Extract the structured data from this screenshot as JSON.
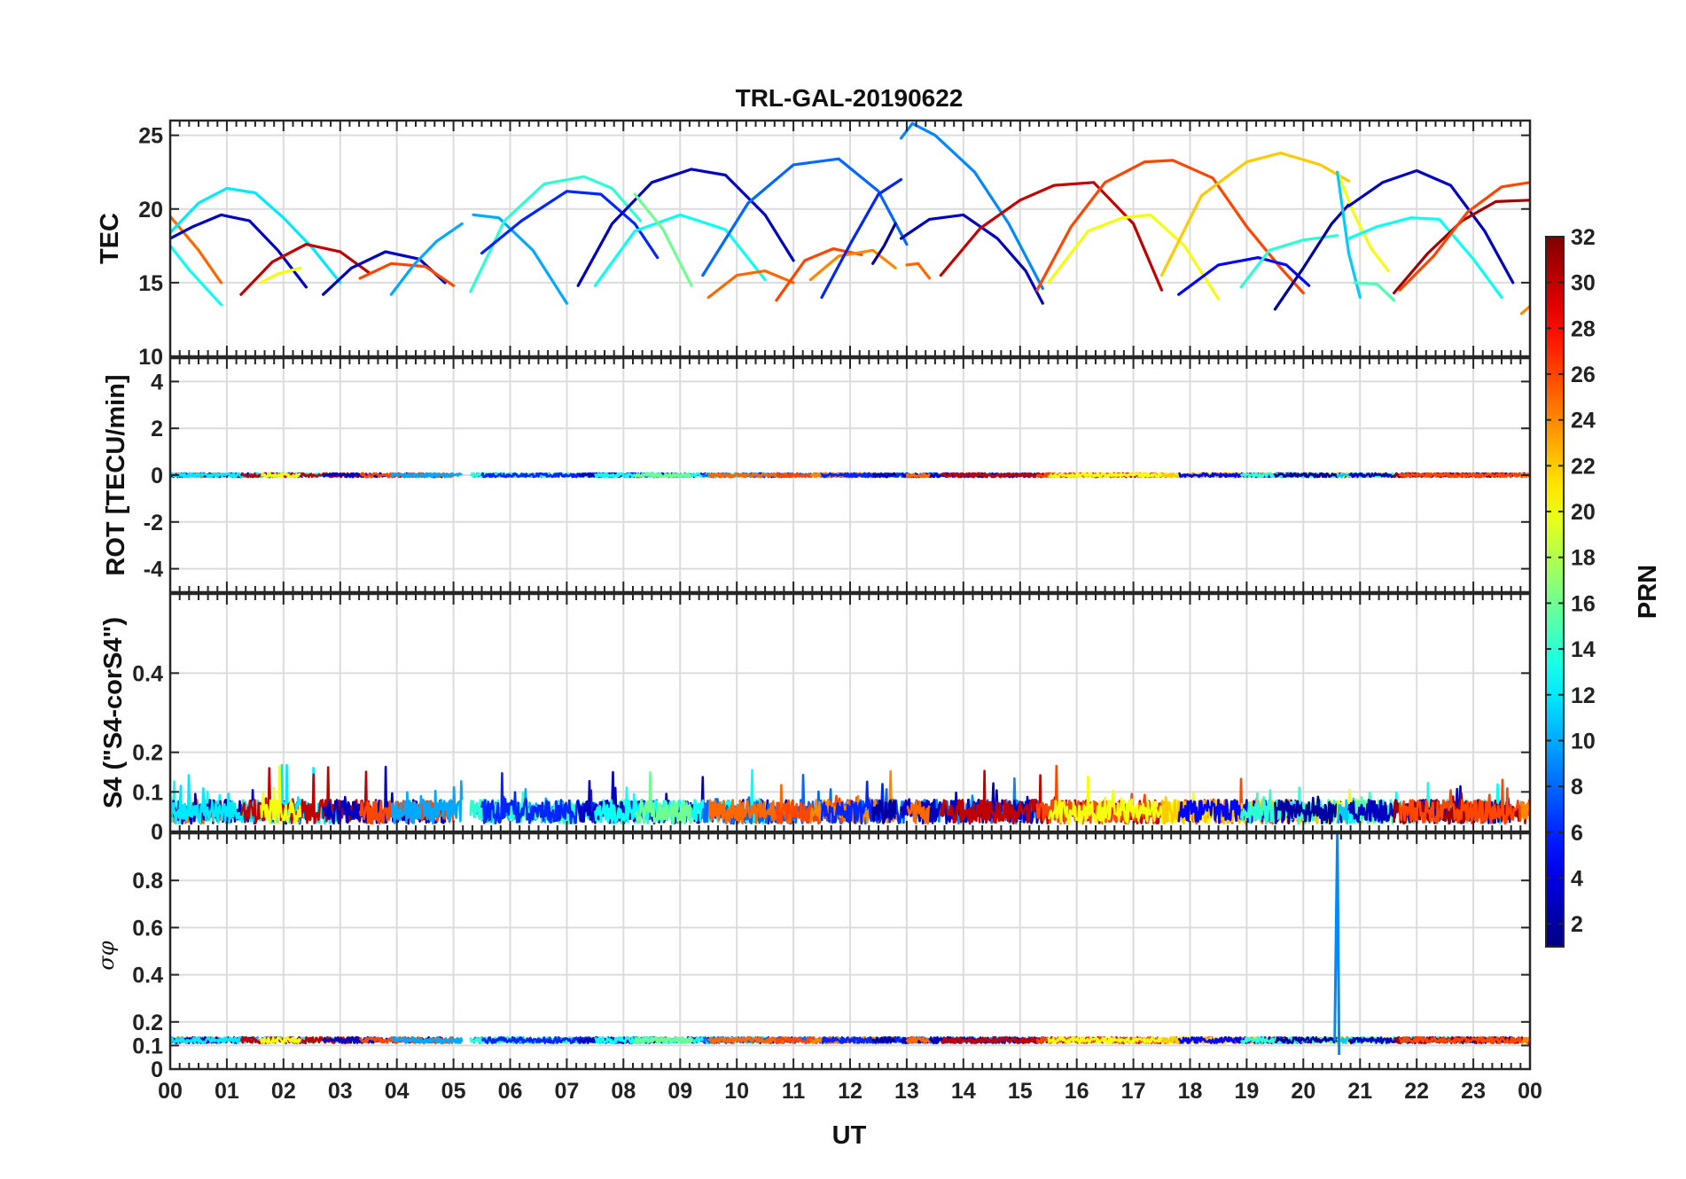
{
  "chart_data": {
    "type": "line",
    "title": "TRL-GAL-20190622",
    "xlabel": "UT",
    "x_range": [
      0,
      24
    ],
    "x_ticks": [
      "00",
      "01",
      "02",
      "03",
      "04",
      "05",
      "06",
      "07",
      "08",
      "09",
      "10",
      "11",
      "12",
      "13",
      "14",
      "15",
      "16",
      "17",
      "18",
      "19",
      "20",
      "21",
      "22",
      "23",
      "00"
    ],
    "colorbar": {
      "label": "PRN",
      "range": [
        1,
        32
      ],
      "colormap": "jet",
      "ticks": [
        "2",
        "4",
        "6",
        "8",
        "10",
        "12",
        "14",
        "16",
        "18",
        "20",
        "22",
        "24",
        "26",
        "28",
        "30",
        "32"
      ]
    },
    "panels": [
      {
        "name": "TEC",
        "ylabel": "TEC",
        "ylim": [
          10,
          26
        ],
        "yticks": [
          10,
          15,
          20,
          25
        ],
        "ytick_labels": [
          "10",
          "15",
          "20",
          "25"
        ],
        "series": [
          {
            "prn": 13,
            "x": [
              0,
              0.35,
              0.9
            ],
            "y": [
              17.5,
              15.8,
              13.5
            ]
          },
          {
            "prn": 25,
            "x": [
              0,
              0.5,
              0.9
            ],
            "y": [
              19.5,
              17.2,
              15.0
            ]
          },
          {
            "prn": 3,
            "x": [
              0,
              0.4,
              0.9,
              1.4,
              1.9,
              2.4
            ],
            "y": [
              18.0,
              18.8,
              19.6,
              19.2,
              17.2,
              14.7
            ]
          },
          {
            "prn": 12,
            "x": [
              0,
              0.5,
              1.0,
              1.5,
              2.0,
              2.5,
              3.0
            ],
            "y": [
              18.4,
              20.4,
              21.4,
              21.1,
              19.4,
              17.4,
              15.0
            ]
          },
          {
            "prn": 30,
            "x": [
              1.25,
              1.8,
              2.4,
              3.0,
              3.5
            ],
            "y": [
              14.2,
              16.4,
              17.6,
              17.1,
              15.7
            ]
          },
          {
            "prn": 20,
            "x": [
              1.6,
              1.9,
              2.3
            ],
            "y": [
              15.0,
              15.6,
              16.0
            ]
          },
          {
            "prn": 3,
            "x": [
              2.7,
              3.2,
              3.8,
              4.4,
              4.85
            ],
            "y": [
              14.2,
              16.0,
              17.1,
              16.6,
              15.0
            ]
          },
          {
            "prn": 26,
            "x": [
              3.35,
              3.9,
              4.5,
              5.0
            ],
            "y": [
              15.3,
              16.3,
              16.1,
              14.8
            ]
          },
          {
            "prn": 10,
            "x": [
              3.9,
              4.3,
              4.7,
              5.15
            ],
            "y": [
              14.2,
              16.2,
              17.8,
              19.0
            ]
          },
          {
            "prn": 10,
            "x": [
              5.35,
              5.8,
              6.4,
              7.0
            ],
            "y": [
              19.6,
              19.4,
              17.2,
              13.6
            ]
          },
          {
            "prn": 14,
            "x": [
              5.3,
              5.9,
              6.6,
              7.3,
              7.8,
              8.3
            ],
            "y": [
              14.4,
              19.2,
              21.7,
              22.2,
              21.4,
              19.2
            ]
          },
          {
            "prn": 6,
            "x": [
              5.5,
              6.2,
              7.0,
              7.6,
              8.2,
              8.6
            ],
            "y": [
              17.0,
              19.2,
              21.2,
              21.0,
              19.0,
              16.7
            ]
          },
          {
            "prn": 3,
            "x": [
              7.2,
              7.8,
              8.5,
              9.2,
              9.8,
              10.5,
              11.0
            ],
            "y": [
              14.8,
              19.0,
              21.8,
              22.7,
              22.3,
              19.6,
              16.5
            ]
          },
          {
            "prn": 13,
            "x": [
              7.5,
              8.2,
              9.0,
              9.8,
              10.5
            ],
            "y": [
              14.8,
              18.5,
              19.6,
              18.6,
              15.2
            ]
          },
          {
            "prn": 16,
            "x": [
              8.2,
              8.7,
              9.2
            ],
            "y": [
              21.0,
              18.6,
              14.8
            ]
          },
          {
            "prn": 8,
            "x": [
              9.4,
              10.2,
              11.0,
              11.8,
              12.5,
              13.0
            ],
            "y": [
              15.5,
              20.4,
              23.0,
              23.4,
              21.2,
              17.6
            ]
          },
          {
            "prn": 25,
            "x": [
              9.5,
              10.0,
              10.5,
              11.0
            ],
            "y": [
              14.0,
              15.5,
              15.8,
              15.0
            ]
          },
          {
            "prn": 26,
            "x": [
              10.7,
              11.2,
              11.7,
              12.2
            ],
            "y": [
              13.8,
              16.5,
              17.3,
              16.9
            ]
          },
          {
            "prn": 24,
            "x": [
              11.3,
              11.8,
              12.4,
              12.8
            ],
            "y": [
              15.2,
              16.8,
              17.2,
              16.0
            ]
          },
          {
            "prn": 6,
            "x": [
              11.5,
              12.0,
              12.5,
              12.9
            ],
            "y": [
              14.0,
              17.6,
              21.0,
              22.0
            ]
          },
          {
            "prn": 2,
            "x": [
              12.4,
              12.6,
              12.8
            ],
            "y": [
              16.3,
              17.5,
              19.0
            ]
          },
          {
            "prn": 9,
            "x": [
              12.9,
              13.1,
              13.5,
              14.2,
              14.8,
              15.4
            ],
            "y": [
              24.8,
              25.8,
              25.0,
              22.5,
              19.0,
              14.6
            ]
          },
          {
            "prn": 3,
            "x": [
              12.9,
              13.4,
              14.0,
              14.6,
              15.1,
              15.4
            ],
            "y": [
              18.0,
              19.3,
              19.6,
              18.0,
              15.8,
              13.6
            ]
          },
          {
            "prn": 25,
            "x": [
              13.0,
              13.2,
              13.4
            ],
            "y": [
              16.2,
              16.3,
              15.3
            ]
          },
          {
            "prn": 30,
            "x": [
              13.6,
              14.3,
              15.0,
              15.6,
              16.3,
              17.0,
              17.5
            ],
            "y": [
              15.5,
              18.7,
              20.6,
              21.6,
              21.8,
              19.0,
              14.5
            ]
          },
          {
            "prn": 26,
            "x": [
              15.3,
              15.9,
              16.5,
              17.2,
              17.7,
              18.4,
              19.0,
              19.6,
              20.0
            ],
            "y": [
              14.5,
              18.8,
              21.8,
              23.2,
              23.3,
              22.1,
              18.8,
              16.0,
              14.3
            ]
          },
          {
            "prn": 20,
            "x": [
              15.5,
              16.2,
              16.8,
              17.3,
              17.9,
              18.5
            ],
            "y": [
              15.0,
              18.5,
              19.4,
              19.6,
              17.5,
              13.9
            ]
          },
          {
            "prn": 22,
            "x": [
              17.5,
              18.2,
              19.0,
              19.6,
              20.3,
              20.8
            ],
            "y": [
              15.5,
              20.9,
              23.2,
              23.8,
              23.0,
              21.9
            ]
          },
          {
            "prn": 5,
            "x": [
              17.8,
              18.5,
              19.2,
              19.7,
              20.1
            ],
            "y": [
              14.2,
              16.2,
              16.7,
              16.2,
              14.8
            ]
          },
          {
            "prn": 14,
            "x": [
              18.9,
              19.4,
              20.0,
              20.6
            ],
            "y": [
              14.7,
              17.2,
              17.9,
              18.2
            ]
          },
          {
            "prn": 2,
            "x": [
              19.5,
              20.0,
              20.5,
              20.8
            ],
            "y": [
              13.2,
              16.0,
              19.0,
              20.3
            ]
          },
          {
            "prn": 20,
            "x": [
              20.6,
              20.9,
              21.2,
              21.5
            ],
            "y": [
              22.5,
              19.6,
              17.3,
              15.8
            ]
          },
          {
            "prn": 11,
            "x": [
              20.6,
              20.8,
              21.0
            ],
            "y": [
              22.5,
              17.0,
              14.0
            ]
          },
          {
            "prn": 13,
            "x": [
              20.8,
              21.3,
              21.9,
              22.4,
              23.0,
              23.5
            ],
            "y": [
              18.0,
              18.8,
              19.4,
              19.3,
              16.6,
              14.0
            ]
          },
          {
            "prn": 15,
            "x": [
              20.9,
              21.3,
              21.6
            ],
            "y": [
              15.0,
              14.9,
              13.8
            ]
          },
          {
            "prn": 3,
            "x": [
              20.8,
              21.4,
              22.0,
              22.6,
              23.2,
              23.7
            ],
            "y": [
              20.2,
              21.8,
              22.6,
              21.6,
              18.5,
              15.0
            ]
          },
          {
            "prn": 31,
            "x": [
              21.6,
              22.2,
              22.8,
              23.4,
              24.0
            ],
            "y": [
              14.3,
              17.0,
              19.2,
              20.5,
              20.6
            ]
          },
          {
            "prn": 26,
            "x": [
              21.7,
              22.3,
              22.9,
              23.5,
              24.0
            ],
            "y": [
              14.5,
              16.8,
              19.8,
              21.5,
              21.8
            ]
          },
          {
            "prn": 24,
            "x": [
              23.85,
              24.0
            ],
            "y": [
              12.9,
              13.4
            ]
          }
        ]
      },
      {
        "name": "ROT",
        "ylabel": "ROT [TECU/min]",
        "ylim": [
          -5,
          5
        ],
        "yticks": [
          -4,
          -2,
          0,
          2,
          4
        ],
        "ytick_labels": [
          "-4",
          "-2",
          "0",
          "2",
          "4"
        ],
        "series_description": "all PRNs near 0 TECU/min throughout the day",
        "level": 0,
        "noise_amplitude": 0.08
      },
      {
        "name": "S4",
        "ylabel": "S4 (\"S4-corS4\")",
        "ylim": [
          0,
          0.6
        ],
        "yticks": [
          0,
          0.1,
          0.2,
          0.4
        ],
        "ytick_labels": [
          "0",
          "0.1",
          "0.2",
          "0.4"
        ],
        "series_description": "mostly 0.03-0.10 with occasional spikes",
        "typical_range": [
          0.02,
          0.12
        ],
        "max_spike": 0.17
      },
      {
        "name": "sigma_phi",
        "ylabel": "σφ",
        "ylim": [
          0,
          1
        ],
        "yticks": [
          0,
          0.1,
          0.2,
          0.4,
          0.6,
          0.8
        ],
        "ytick_labels": [
          "0",
          "0.1",
          "0.2",
          "0.4",
          "0.6",
          "0.8"
        ],
        "series_description": "mostly 0.10-0.14, single spike to ~1.0 near 20.6 UT",
        "typical_range": [
          0.1,
          0.14
        ],
        "spike": {
          "x": 20.6,
          "y": 1.0,
          "prn": 9
        }
      }
    ]
  }
}
